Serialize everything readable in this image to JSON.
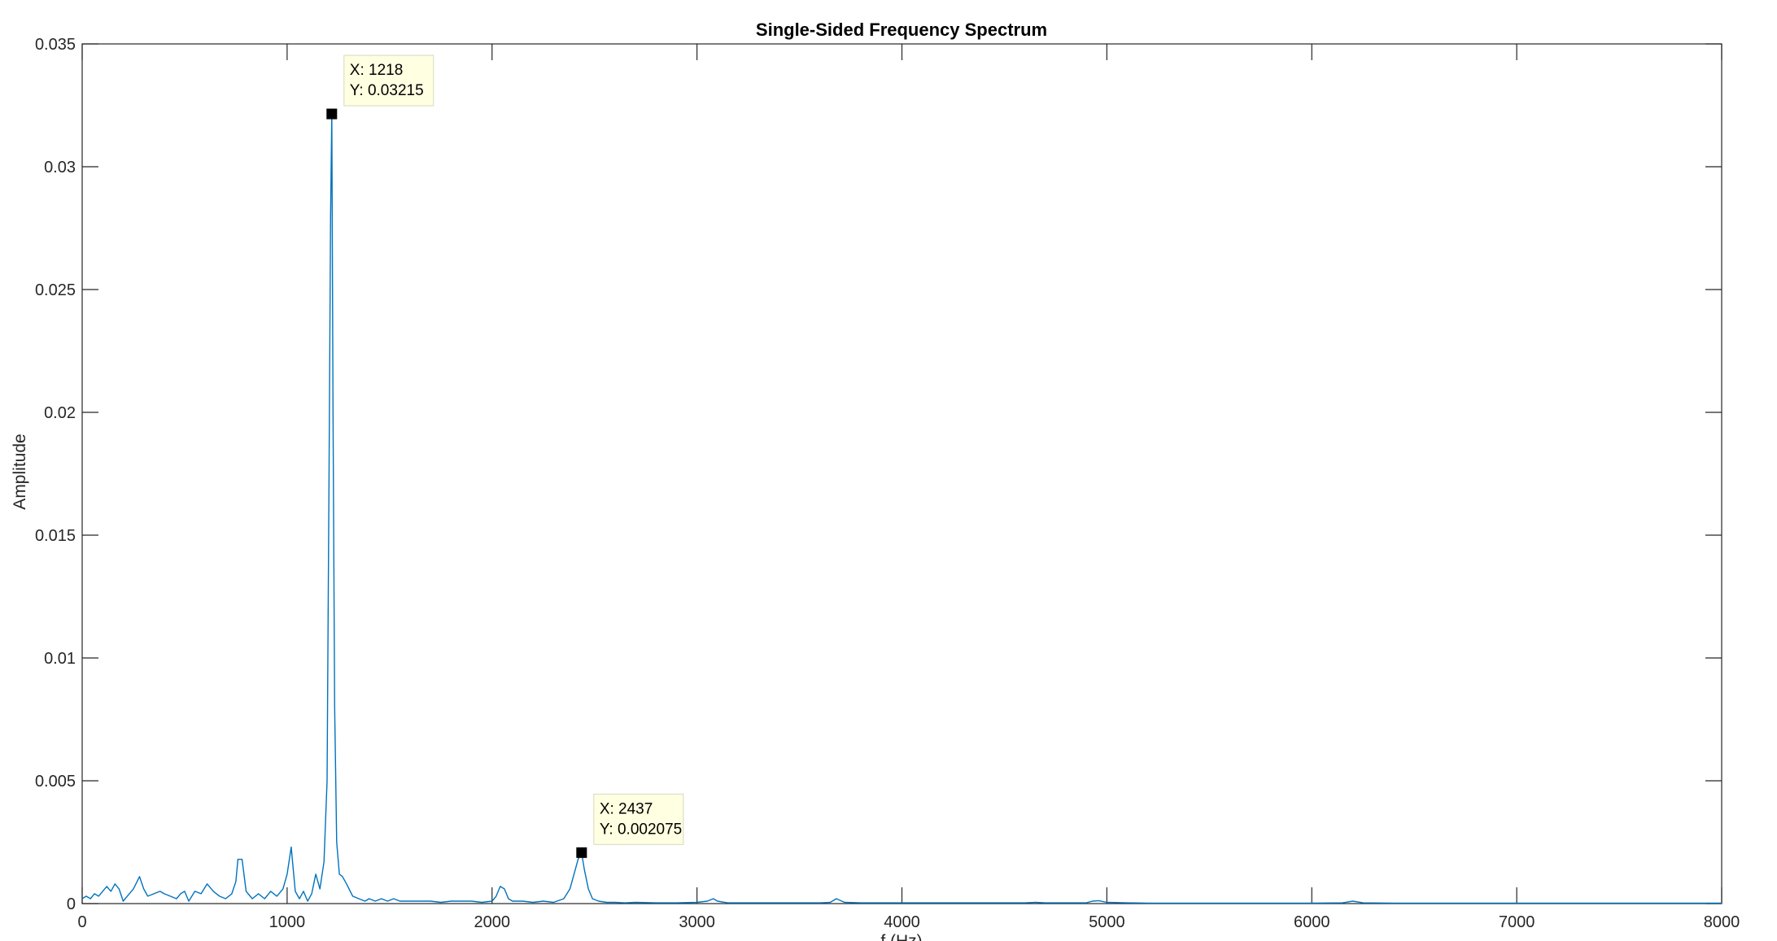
{
  "chart_data": {
    "type": "line",
    "title": "Single-Sided Frequency Spectrum",
    "xlabel": "f (Hz)",
    "ylabel": "Amplitude",
    "xlim": [
      0,
      8000
    ],
    "ylim": [
      0,
      0.035
    ],
    "xticks": [
      0,
      1000,
      2000,
      3000,
      4000,
      5000,
      6000,
      7000,
      8000
    ],
    "xtick_labels": [
      "0",
      "1000",
      "2000",
      "3000",
      "4000",
      "5000",
      "6000",
      "7000",
      "8000"
    ],
    "yticks": [
      0,
      0.005,
      0.01,
      0.015,
      0.02,
      0.025,
      0.03,
      0.035
    ],
    "ytick_labels": [
      "0",
      "0.005",
      "0.01",
      "0.015",
      "0.02",
      "0.025",
      "0.03",
      "0.035"
    ],
    "grid": false,
    "series": [
      {
        "color": "#0072BD",
        "x": [
          0,
          20,
          40,
          60,
          80,
          100,
          120,
          140,
          160,
          180,
          200,
          220,
          250,
          280,
          300,
          320,
          350,
          380,
          400,
          430,
          460,
          480,
          500,
          520,
          550,
          580,
          610,
          640,
          670,
          700,
          730,
          750,
          760,
          780,
          800,
          830,
          860,
          890,
          920,
          950,
          980,
          1000,
          1020,
          1040,
          1060,
          1080,
          1100,
          1120,
          1140,
          1160,
          1180,
          1195,
          1205,
          1212,
          1218,
          1224,
          1232,
          1242,
          1255,
          1270,
          1290,
          1320,
          1350,
          1380,
          1400,
          1430,
          1460,
          1490,
          1520,
          1550,
          1580,
          1620,
          1660,
          1700,
          1750,
          1800,
          1850,
          1900,
          1950,
          2000,
          2020,
          2040,
          2060,
          2080,
          2100,
          2150,
          2200,
          2250,
          2300,
          2350,
          2380,
          2400,
          2420,
          2437,
          2450,
          2470,
          2490,
          2520,
          2560,
          2600,
          2650,
          2700,
          2800,
          2900,
          3000,
          3050,
          3080,
          3100,
          3150,
          3200,
          3300,
          3400,
          3500,
          3600,
          3650,
          3680,
          3720,
          3800,
          3900,
          4000,
          4100,
          4200,
          4300,
          4400,
          4500,
          4600,
          4650,
          4700,
          4800,
          4900,
          4930,
          4960,
          5000,
          5100,
          5200,
          5400,
          5600,
          5800,
          6000,
          6150,
          6200,
          6250,
          6400,
          6600,
          6800,
          7000,
          7200,
          7400,
          7600,
          7800,
          8000
        ],
        "y": [
          0.0002,
          0.0003,
          0.0002,
          0.0004,
          0.0003,
          0.0005,
          0.0007,
          0.0005,
          0.0008,
          0.0006,
          0.0001,
          0.0003,
          0.0006,
          0.0011,
          0.0006,
          0.0003,
          0.0004,
          0.0005,
          0.0004,
          0.0003,
          0.0002,
          0.0004,
          0.0005,
          0.0001,
          0.0005,
          0.0004,
          0.0008,
          0.0005,
          0.0003,
          0.0002,
          0.0004,
          0.0009,
          0.0018,
          0.0018,
          0.0005,
          0.0002,
          0.0004,
          0.0002,
          0.0005,
          0.0003,
          0.0006,
          0.0012,
          0.0023,
          0.0005,
          0.0002,
          0.0005,
          0.0001,
          0.0004,
          0.0012,
          0.0006,
          0.0017,
          0.005,
          0.018,
          0.028,
          0.03215,
          0.02,
          0.008,
          0.0025,
          0.0012,
          0.0011,
          0.0008,
          0.0003,
          0.0002,
          0.0001,
          0.0002,
          0.0001,
          0.0002,
          0.0001,
          0.0002,
          0.0001,
          0.0001,
          0.0001,
          0.0001,
          0.0001,
          5e-05,
          0.0001,
          0.0001,
          0.0001,
          5e-05,
          0.0001,
          0.0003,
          0.0007,
          0.0006,
          0.0002,
          0.0001,
          0.0001,
          5e-05,
          0.0001,
          5e-05,
          0.0002,
          0.0006,
          0.0012,
          0.0018,
          0.002075,
          0.0014,
          0.0006,
          0.0002,
          0.0001,
          5e-05,
          5e-05,
          3e-05,
          5e-05,
          3e-05,
          3e-05,
          5e-05,
          0.0001,
          0.0002,
          0.0001,
          3e-05,
          3e-05,
          3e-05,
          3e-05,
          3e-05,
          3e-05,
          5e-05,
          0.0002,
          5e-05,
          3e-05,
          3e-05,
          3e-05,
          3e-05,
          3e-05,
          3e-05,
          3e-05,
          3e-05,
          3e-05,
          5e-05,
          3e-05,
          3e-05,
          3e-05,
          0.0001,
          0.00012,
          5e-05,
          3e-05,
          2e-05,
          2e-05,
          2e-05,
          2e-05,
          2e-05,
          3e-05,
          0.0001,
          3e-05,
          2e-05,
          2e-05,
          2e-05,
          2e-05,
          2e-05,
          2e-05,
          2e-05,
          2e-05,
          2e-05
        ]
      }
    ],
    "datatips": [
      {
        "x": 1218,
        "y": 0.03215,
        "line1": "X: 1218",
        "line2": "Y: 0.03215"
      },
      {
        "x": 2437,
        "y": 0.002075,
        "line1": "X: 2437",
        "line2": "Y: 0.002075"
      }
    ]
  }
}
